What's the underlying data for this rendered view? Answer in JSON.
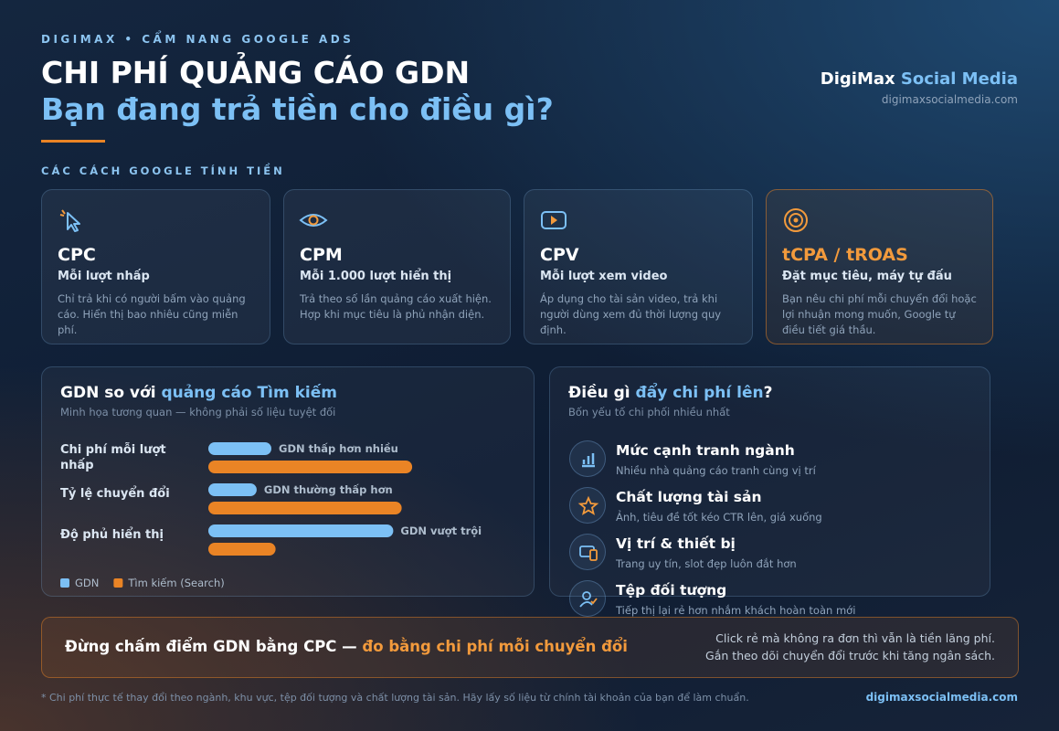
{
  "header": {
    "eyebrow": "DIGIMAX • CẨM NANG GOOGLE ADS",
    "title": "CHI PHÍ QUẢNG CÁO GDN",
    "subtitle": "Bạn đang trả tiền cho điều gì?",
    "brand": "DigiMax",
    "brand_accent": "Social Media",
    "url": "digimaxsocialmedia.com"
  },
  "pricing": {
    "label": "CÁC CÁCH GOOGLE TÍNH TIỀN",
    "cards": [
      {
        "name": "CPC",
        "subtitle": "Mỗi lượt nhấp",
        "text": "Chỉ trả khi có người bấm vào quảng cáo. Hiển thị bao nhiêu cũng miễn phí."
      },
      {
        "name": "CPM",
        "subtitle": "Mỗi 1.000 lượt hiển thị",
        "text": "Trả theo số lần quảng cáo xuất hiện. Hợp khi mục tiêu là phủ nhận diện."
      },
      {
        "name": "CPV",
        "subtitle": "Mỗi lượt xem video",
        "text": "Áp dụng cho tài sản video, trả khi người dùng xem đủ thời lượng quy định."
      },
      {
        "name": "tCPA / tROAS",
        "subtitle": "Đặt mục tiêu, máy tự đấu",
        "text": "Bạn nêu chi phí mỗi chuyển đổi hoặc lợi nhuận mong muốn, Google tự điều tiết giá thầu."
      }
    ]
  },
  "chart_data": {
    "type": "bar",
    "orientation": "horizontal",
    "title": "GDN so với ",
    "title_accent": "quảng cáo Tìm kiếm",
    "subtitle": "Minh họa tương quan — không phải số liệu tuyệt đối",
    "categories": [
      "Chi phí mỗi lượt nhấp",
      "Tỷ lệ chuyển đổi",
      "Độ phủ hiển thị"
    ],
    "annotations": [
      "GDN thấp hơn nhiều",
      "GDN thường thấp hơn",
      "GDN vượt trội"
    ],
    "xlim": [
      0,
      100
    ],
    "series": [
      {
        "name": "GDN",
        "color": "#7cc0f5",
        "values": [
          30,
          23,
          88
        ]
      },
      {
        "name": "Tìm kiếm (Search)",
        "color": "#ea8425",
        "values": [
          97,
          92,
          32
        ]
      }
    ]
  },
  "factors": {
    "title": "Điều gì ",
    "title_accent": "đẩy chi phí lên",
    "title_end": "?",
    "subtitle": "Bốn yếu tố chi phối nhiều nhất",
    "items": [
      {
        "title": "Mức cạnh tranh ngành",
        "text": "Nhiều nhà quảng cáo tranh cùng vị trí"
      },
      {
        "title": "Chất lượng tài sản",
        "text": "Ảnh, tiêu đề tốt kéo CTR lên, giá xuống"
      },
      {
        "title": "Vị trí & thiết bị",
        "text": "Trang uy tín, slot đẹp luôn đắt hơn"
      },
      {
        "title": "Tệp đối tượng",
        "text": "Tiếp thị lại rẻ hơn nhắm khách hoàn toàn mới"
      }
    ]
  },
  "callout": {
    "text": "Đừng chấm điểm GDN bằng CPC — ",
    "accent": "đo bằng chi phí mỗi chuyển đổi",
    "note_1": "Click rẻ mà không ra đơn thì vẫn là tiền lãng phí.",
    "note_2": "Gắn theo dõi chuyển đổi trước khi tăng ngân sách."
  },
  "footer": {
    "note": "* Chi phí thực tế thay đổi theo ngành, khu vực, tệp đối tượng và chất lượng tài sản. Hãy lấy số liệu từ chính tài khoản của bạn để làm chuẩn.",
    "url": "digimaxsocialmedia.com"
  }
}
